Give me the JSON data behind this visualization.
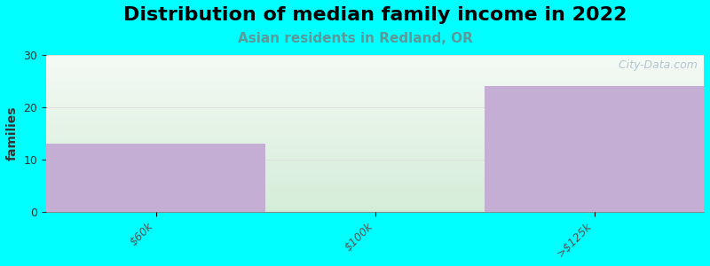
{
  "title": "Distribution of median family income in 2022",
  "subtitle": "Asian residents in Redland, OR",
  "categories": [
    "$60k",
    "$100k",
    ">$125k"
  ],
  "values": [
    13,
    0,
    24
  ],
  "bar_color": "#c4aed4",
  "bg_color_fig": "#00ffff",
  "ylabel": "families",
  "ylim": [
    0,
    30
  ],
  "yticks": [
    0,
    10,
    20,
    30
  ],
  "title_fontsize": 16,
  "subtitle_fontsize": 11,
  "subtitle_color": "#5a9a9a",
  "watermark": "  City-Data.com",
  "grid_color": "#dddddd",
  "bg_top_color": "#f0f8f0",
  "bg_bottom_color": "#d8eedd"
}
